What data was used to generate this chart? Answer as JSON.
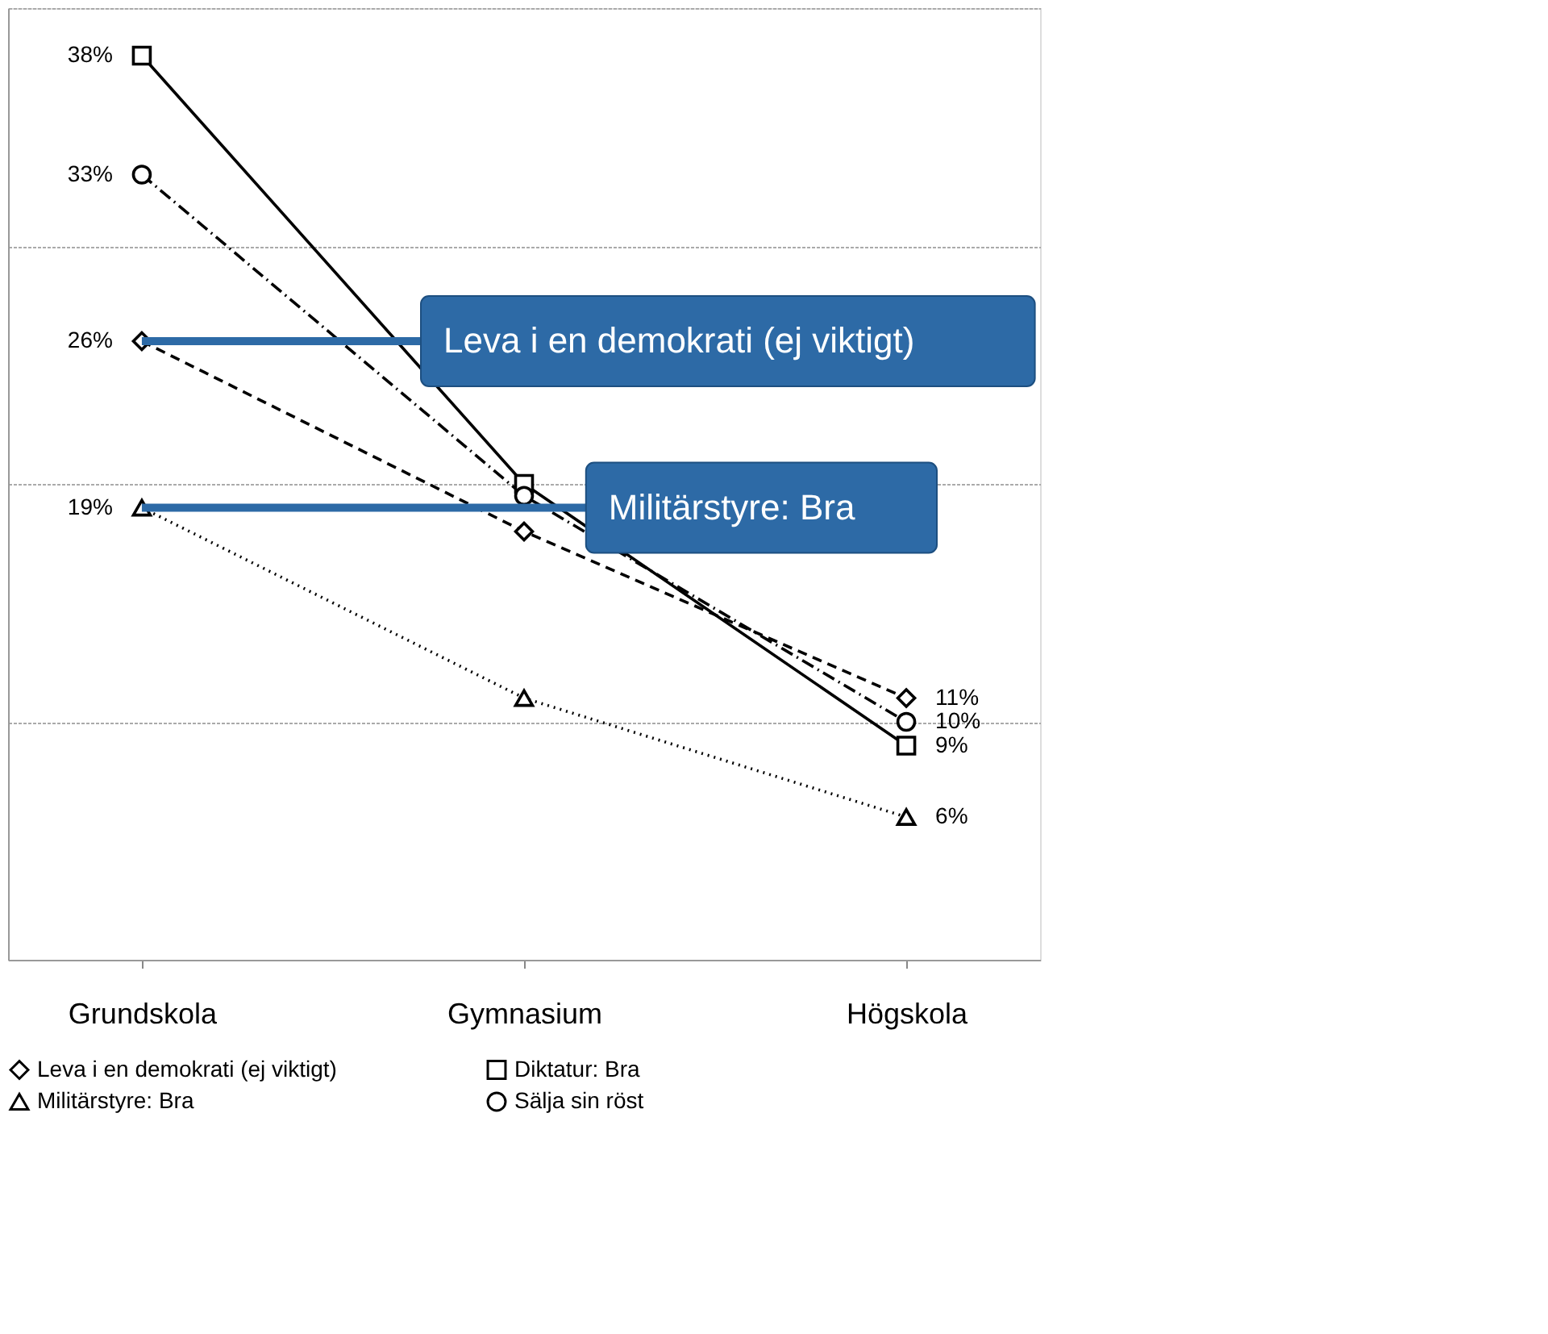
{
  "chart_data": {
    "type": "line",
    "categories": [
      "Grundskola",
      "Gymnasium",
      "Högskola"
    ],
    "series": [
      {
        "name": "Leva i en demokrati (ej viktigt)",
        "color": "#000000",
        "line_style": "dashed",
        "marker": "diamond",
        "values": [
          26,
          18,
          11
        ],
        "value_labels": [
          "26%",
          null,
          "11%"
        ]
      },
      {
        "name": "Diktatur: Bra",
        "color": "#000000",
        "line_style": "solid",
        "marker": "square",
        "values": [
          38,
          20,
          9
        ],
        "value_labels": [
          "38%",
          null,
          "9%"
        ]
      },
      {
        "name": "Militärstyre: Bra",
        "color": "#000000",
        "line_style": "dotted",
        "marker": "triangle",
        "values": [
          19,
          11,
          6
        ],
        "value_labels": [
          "19%",
          null,
          "6%"
        ]
      },
      {
        "name": "Sälja sin röst",
        "color": "#000000",
        "line_style": "dashdot",
        "marker": "circle",
        "values": [
          33,
          19.5,
          10
        ],
        "value_labels": [
          "33%",
          null,
          "10%"
        ]
      }
    ],
    "ylim": [
      0,
      40
    ],
    "yticks": [
      {
        "value": 0,
        "label": null
      },
      {
        "value": 10,
        "label": null
      },
      {
        "value": 20,
        "label": null
      },
      {
        "value": 30,
        "label": null
      },
      {
        "value": 40,
        "label": null
      }
    ],
    "tick_labels": "x",
    "grid": "y",
    "legend": "bottom",
    "annotations": [
      {
        "text": "Leva i en demokrati (ej viktigt)",
        "x": "Grundskola",
        "y": 26
      },
      {
        "text": "Militärstyre: Bra",
        "x": "Grundskola",
        "y": 19
      }
    ]
  }
}
